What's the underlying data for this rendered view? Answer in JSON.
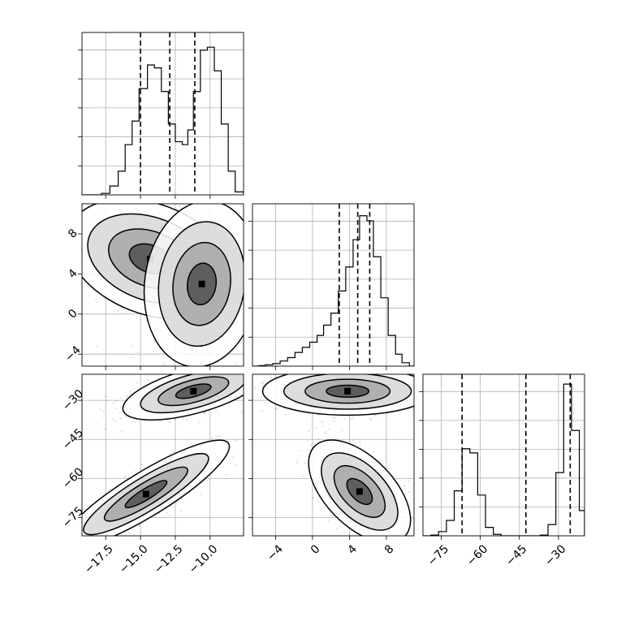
{
  "chart_data": {
    "type": "corner",
    "grid": true,
    "params": [
      "p0",
      "p1",
      "p2"
    ],
    "histograms": [
      {
        "param": "p0",
        "xlim": [
          -19.2,
          -7.6
        ],
        "bins": [
          [
            -19.2,
            -18.5,
            0
          ],
          [
            -18.5,
            -17.8,
            0
          ],
          [
            -17.8,
            -17.2,
            0.5
          ],
          [
            -17.2,
            -16.6,
            3
          ],
          [
            -16.6,
            -16.1,
            8
          ],
          [
            -16.1,
            -15.6,
            17
          ],
          [
            -15.6,
            -15.1,
            25
          ],
          [
            -15.1,
            -14.5,
            36
          ],
          [
            -14.5,
            -14.0,
            44
          ],
          [
            -14.0,
            -13.5,
            43
          ],
          [
            -13.5,
            -13.0,
            35
          ],
          [
            -13.0,
            -12.5,
            24
          ],
          [
            -12.5,
            -12.0,
            18
          ],
          [
            -12.0,
            -11.6,
            17
          ],
          [
            -11.6,
            -11.2,
            22
          ],
          [
            -11.2,
            -10.7,
            35
          ],
          [
            -10.7,
            -10.2,
            49
          ],
          [
            -10.2,
            -9.7,
            50
          ],
          [
            -9.7,
            -9.2,
            42
          ],
          [
            -9.2,
            -8.7,
            24
          ],
          [
            -8.7,
            -8.2,
            8
          ],
          [
            -8.2,
            -7.6,
            1
          ]
        ],
        "ylim": [
          0,
          55
        ],
        "quantiles": [
          -15.0,
          -12.9,
          -11.1
        ]
      },
      {
        "param": "p1",
        "xlim": [
          -6.5,
          11.0
        ],
        "bins": [
          [
            -6.5,
            -5.8,
            0
          ],
          [
            -5.8,
            -5.1,
            0.3
          ],
          [
            -5.1,
            -4.3,
            0.8
          ],
          [
            -4.3,
            -3.5,
            1.5
          ],
          [
            -3.5,
            -2.7,
            3
          ],
          [
            -2.7,
            -1.9,
            5
          ],
          [
            -1.9,
            -1.1,
            8
          ],
          [
            -1.1,
            -0.3,
            11
          ],
          [
            -0.3,
            0.5,
            14
          ],
          [
            0.5,
            1.2,
            18
          ],
          [
            1.2,
            2.0,
            24
          ],
          [
            2.0,
            2.8,
            31
          ],
          [
            2.8,
            3.6,
            44
          ],
          [
            3.6,
            4.4,
            58
          ],
          [
            4.4,
            5.1,
            74
          ],
          [
            5.1,
            5.9,
            88
          ],
          [
            5.9,
            6.6,
            85
          ],
          [
            6.6,
            7.4,
            64
          ],
          [
            7.4,
            8.2,
            40
          ],
          [
            8.2,
            9.0,
            18
          ],
          [
            9.0,
            9.7,
            7
          ],
          [
            9.7,
            10.5,
            2
          ],
          [
            10.5,
            11.0,
            0
          ]
        ],
        "ylim": [
          0,
          95
        ],
        "quantiles": [
          2.9,
          4.9,
          6.2
        ]
      },
      {
        "param": "p2",
        "xlim": [
          -82,
          -20
        ],
        "bins": [
          [
            -82,
            -79,
            0
          ],
          [
            -79,
            -76,
            0.5
          ],
          [
            -76,
            -73,
            3
          ],
          [
            -73,
            -70,
            11
          ],
          [
            -70,
            -67,
            32
          ],
          [
            -67,
            -64,
            62
          ],
          [
            -64,
            -61,
            59
          ],
          [
            -61,
            -58,
            29
          ],
          [
            -58,
            -55,
            6
          ],
          [
            -55,
            -52,
            1
          ],
          [
            -52,
            -49,
            0
          ],
          [
            -49,
            -46,
            0
          ],
          [
            -46,
            -43,
            0
          ],
          [
            -43,
            -40,
            0
          ],
          [
            -40,
            -37,
            0
          ],
          [
            -37,
            -34,
            0.5
          ],
          [
            -34,
            -31,
            8
          ],
          [
            -31,
            -28,
            45
          ],
          [
            -28,
            -25,
            108
          ],
          [
            -25,
            -22,
            75
          ],
          [
            -22,
            -20,
            18
          ]
        ],
        "ylim": [
          0,
          115
        ],
        "quantiles": [
          -67,
          -42.5,
          -25.5
        ]
      }
    ],
    "scatter_panels": [
      {
        "x_param": "p0",
        "y_param": "p1",
        "xlim": [
          -19.2,
          -7.6
        ],
        "ylim": [
          -5.2,
          11.0
        ],
        "modes": [
          {
            "cx": -14.3,
            "cy": 5.5,
            "sx": 1.3,
            "sy": 1.3,
            "rho": -0.3,
            "weight": 0.55
          },
          {
            "cx": -10.6,
            "cy": 3.0,
            "sx": 0.9,
            "sy": 1.8,
            "rho": 0.1,
            "weight": 0.45
          }
        ]
      },
      {
        "x_param": "p0",
        "y_param": "p2",
        "xlim": [
          -19.2,
          -7.6
        ],
        "ylim": [
          -82,
          -20
        ],
        "modes": [
          {
            "cx": -11.2,
            "cy": -26.5,
            "sx": 1.1,
            "sy": 2.4,
            "rho": 0.6,
            "weight": 0.5
          },
          {
            "cx": -14.6,
            "cy": -66.0,
            "sx": 1.3,
            "sy": 4.5,
            "rho": 0.88,
            "weight": 0.5
          }
        ]
      },
      {
        "x_param": "p1",
        "y_param": "p2",
        "xlim": [
          -6.5,
          11.0
        ],
        "ylim": [
          -82,
          -20
        ],
        "modes": [
          {
            "cx": 3.8,
            "cy": -26.5,
            "sx": 2.0,
            "sy": 2.0,
            "rho": 0.0,
            "weight": 0.5
          },
          {
            "cx": 5.1,
            "cy": -65.0,
            "sx": 1.2,
            "sy": 4.3,
            "rho": -0.55,
            "weight": 0.5
          }
        ]
      }
    ],
    "contour_levels_sigma": [
      0.5,
      1.0,
      1.5,
      2.0
    ],
    "axes": {
      "p0": {
        "ticks": [
          -17.5,
          -15.0,
          -12.5,
          -10.0
        ],
        "tick_labels": [
          "−17.5",
          "−15.0",
          "−12.5",
          "−10.0"
        ]
      },
      "p1": {
        "ticks": [
          -4,
          0,
          4,
          8
        ],
        "tick_labels": [
          "−4",
          "0",
          "4",
          "8"
        ]
      },
      "p2": {
        "ticks": [
          -75,
          -60,
          -45,
          -30
        ],
        "tick_labels": [
          "−75",
          "−60",
          "−45",
          "−30"
        ]
      }
    },
    "colors": {
      "points": "#000000",
      "contour_line": "#000000",
      "fill_levels": [
        "#ffffff",
        "#d9d9d9",
        "#aaaaaa",
        "#555555",
        "#000000"
      ],
      "grid": "#b0b0b0"
    }
  }
}
